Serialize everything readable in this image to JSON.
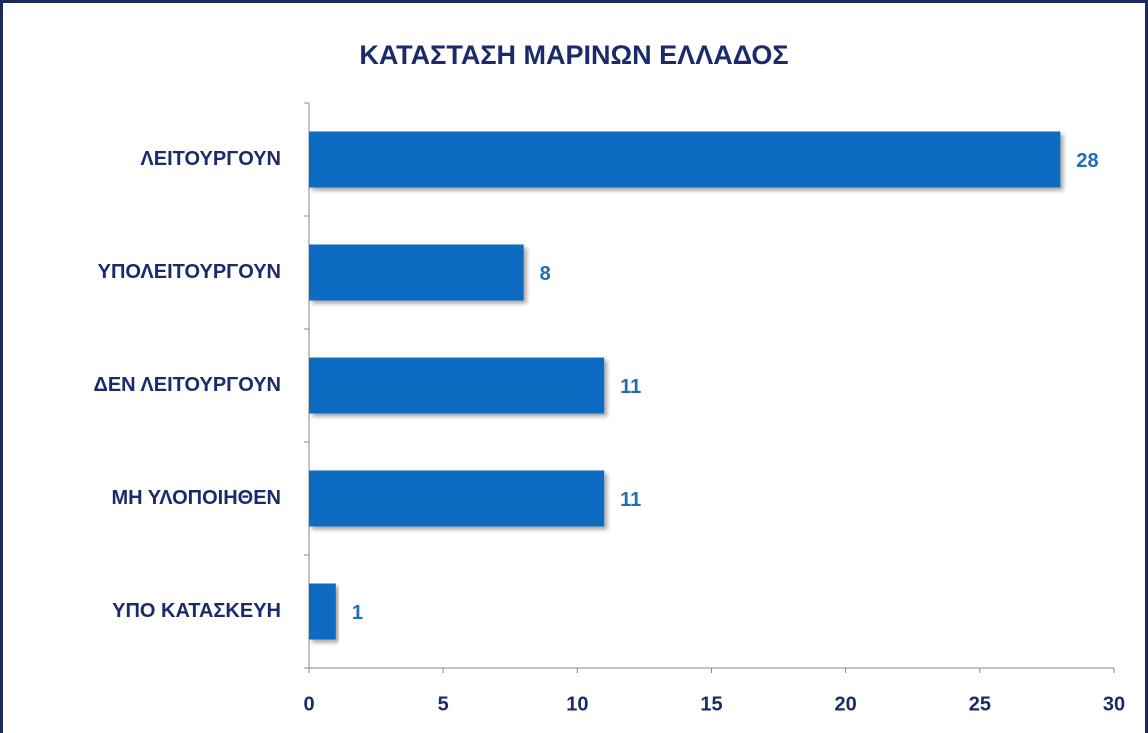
{
  "chart_data": {
    "type": "bar",
    "orientation": "horizontal",
    "title": "ΚΑΤΑΣΤΑΣΗ ΜΑΡΙΝΩΝ ΕΛΛΑΔΟΣ",
    "categories": [
      "ΛΕΙΤΟΥΡΓΟΥΝ",
      "ΥΠΟΛΕΙΤΟΥΡΓΟΥΝ",
      "ΔΕΝ ΛΕΙΤΟΥΡΓΟΥΝ",
      "ΜΗ ΥΛΟΠΟΙΗΘΕΝ",
      "ΥΠΟ ΚΑΤΑΣΚΕΥΗ"
    ],
    "values": [
      28,
      8,
      11,
      11,
      1
    ],
    "color": "#0b6cc1",
    "xlim": [
      0,
      30
    ],
    "xticks": [
      0,
      5,
      10,
      15,
      20,
      25,
      30
    ],
    "grid": false
  }
}
